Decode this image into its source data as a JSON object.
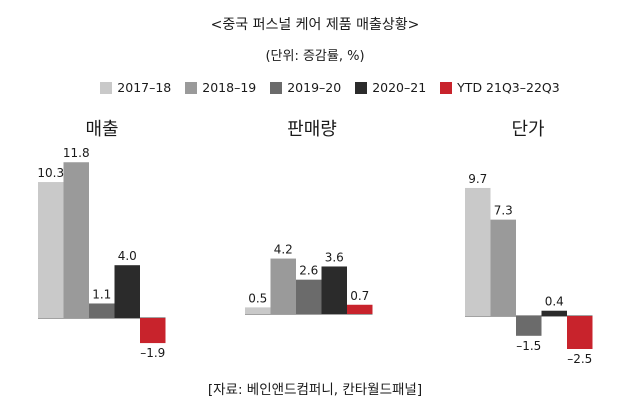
{
  "title": "<중국 퍼스널 케어 제품 매출상황>",
  "subtitle": "(단위: 증감률, %)",
  "source": "[자료: 베인앤드컴퍼니, 칸타월드패널]",
  "legend": [
    {
      "name": "2017–18",
      "color": "#c9c9c9"
    },
    {
      "name": "2018–19",
      "color": "#9a9a9a"
    },
    {
      "name": "2019–20",
      "color": "#6b6b6b"
    },
    {
      "name": "2020–21",
      "color": "#2b2b2b"
    },
    {
      "name": "YTD 21Q3–22Q3",
      "color": "#c8232c"
    }
  ],
  "chart_data": [
    {
      "type": "bar",
      "title": "매출",
      "categories": [
        "2017–18",
        "2018–19",
        "2019–20",
        "2020–21",
        "YTD 21Q3–22Q3"
      ],
      "values": [
        10.3,
        11.8,
        1.1,
        4.0,
        -1.9
      ],
      "labels": [
        "10.3",
        "11.8",
        "1.1",
        "4.0",
        "–1.9"
      ]
    },
    {
      "type": "bar",
      "title": "판매량",
      "categories": [
        "2017–18",
        "2018–19",
        "2019–20",
        "2020–21",
        "YTD 21Q3–22Q3"
      ],
      "values": [
        0.5,
        4.2,
        2.6,
        3.6,
        0.7
      ],
      "labels": [
        "0.5",
        "4.2",
        "2.6",
        "3.6",
        "0.7"
      ]
    },
    {
      "type": "bar",
      "title": "단가",
      "categories": [
        "2017–18",
        "2018–19",
        "2019–20",
        "2020–21",
        "YTD 21Q3–22Q3"
      ],
      "values": [
        9.7,
        7.3,
        -1.5,
        0.4,
        -2.5
      ],
      "labels": [
        "9.7",
        "7.3",
        "–1.5",
        "0.4",
        "–2.5"
      ]
    }
  ]
}
